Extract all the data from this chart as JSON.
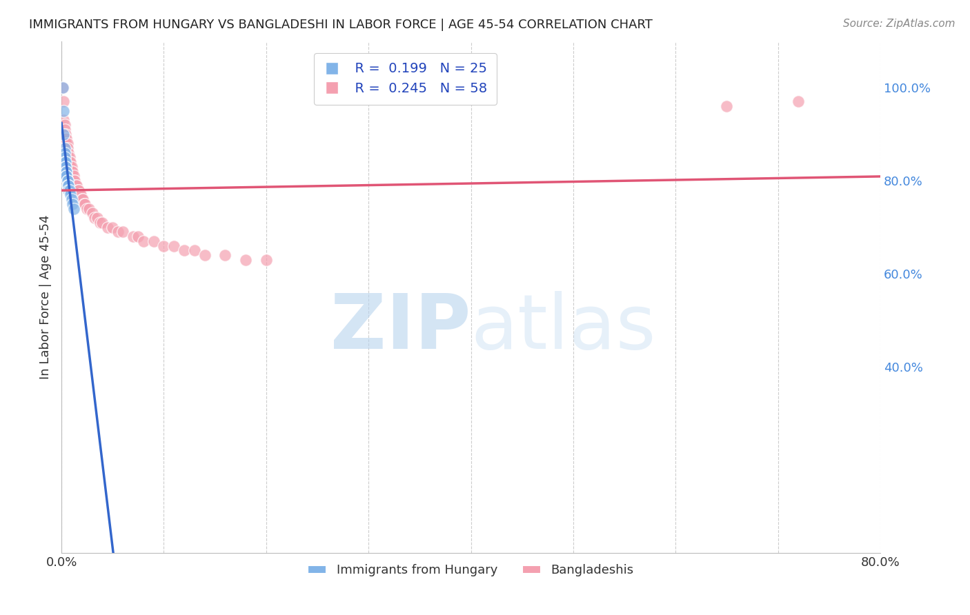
{
  "title": "IMMIGRANTS FROM HUNGARY VS BANGLADESHI IN LABOR FORCE | AGE 45-54 CORRELATION CHART",
  "source": "Source: ZipAtlas.com",
  "ylabel": "In Labor Force | Age 45-54",
  "xmin": 0.0,
  "xmax": 0.8,
  "ymin": 0.0,
  "ymax": 1.1,
  "legend_hungary_R": "0.199",
  "legend_hungary_N": "25",
  "legend_bangladeshi_R": "0.245",
  "legend_bangladeshi_N": "58",
  "hungary_color": "#82b4e8",
  "bangladeshi_color": "#f4a0b0",
  "hungary_line_color": "#3366cc",
  "bangladeshi_line_color": "#e05575",
  "hungary_x": [
    0.001,
    0.002,
    0.002,
    0.003,
    0.003,
    0.003,
    0.003,
    0.004,
    0.004,
    0.004,
    0.005,
    0.005,
    0.005,
    0.005,
    0.006,
    0.006,
    0.006,
    0.007,
    0.007,
    0.007,
    0.008,
    0.009,
    0.01,
    0.011,
    0.012
  ],
  "hungary_y": [
    1.0,
    0.95,
    0.9,
    0.87,
    0.86,
    0.85,
    0.84,
    0.84,
    0.83,
    0.83,
    0.82,
    0.82,
    0.81,
    0.81,
    0.8,
    0.8,
    0.79,
    0.79,
    0.79,
    0.78,
    0.78,
    0.77,
    0.76,
    0.75,
    0.74
  ],
  "bangladeshi_x": [
    0.001,
    0.002,
    0.002,
    0.003,
    0.003,
    0.004,
    0.004,
    0.005,
    0.005,
    0.006,
    0.006,
    0.007,
    0.007,
    0.008,
    0.008,
    0.009,
    0.009,
    0.01,
    0.01,
    0.011,
    0.012,
    0.012,
    0.013,
    0.014,
    0.015,
    0.016,
    0.017,
    0.018,
    0.019,
    0.02,
    0.021,
    0.022,
    0.023,
    0.025,
    0.027,
    0.03,
    0.032,
    0.035,
    0.038,
    0.04,
    0.045,
    0.05,
    0.055,
    0.06,
    0.07,
    0.075,
    0.08,
    0.09,
    0.1,
    0.11,
    0.12,
    0.13,
    0.14,
    0.16,
    0.18,
    0.2,
    0.65,
    0.72
  ],
  "bangladeshi_y": [
    1.0,
    0.97,
    0.93,
    0.92,
    0.91,
    0.9,
    0.89,
    0.89,
    0.88,
    0.88,
    0.87,
    0.86,
    0.85,
    0.85,
    0.84,
    0.84,
    0.83,
    0.83,
    0.82,
    0.82,
    0.81,
    0.8,
    0.8,
    0.79,
    0.79,
    0.78,
    0.78,
    0.77,
    0.77,
    0.76,
    0.76,
    0.75,
    0.75,
    0.74,
    0.74,
    0.73,
    0.72,
    0.72,
    0.71,
    0.71,
    0.7,
    0.7,
    0.69,
    0.69,
    0.68,
    0.68,
    0.67,
    0.67,
    0.66,
    0.66,
    0.65,
    0.65,
    0.64,
    0.64,
    0.63,
    0.63,
    0.96,
    0.97
  ],
  "watermark_zip": "ZIP",
  "watermark_atlas": "atlas",
  "background_color": "#ffffff",
  "grid_color": "#cccccc"
}
